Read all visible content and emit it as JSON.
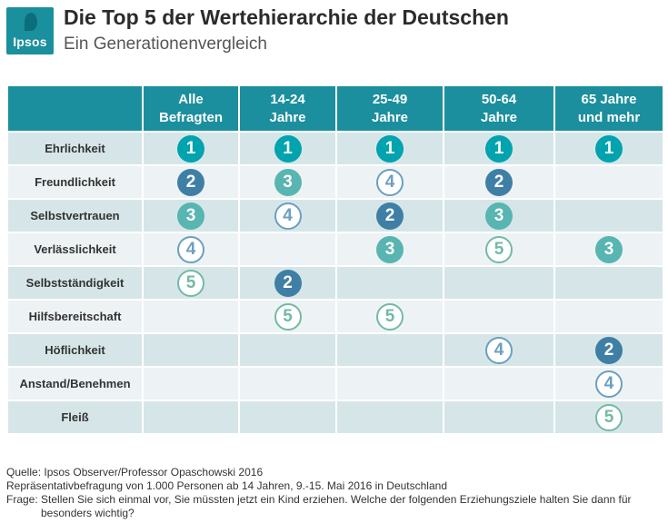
{
  "brand": {
    "logo_text": "Ipsos"
  },
  "title": "Die Top 5 der Wertehierarchie der Deutschen",
  "subtitle": "Ein Generationenvergleich",
  "chart_data": {
    "type": "table",
    "columns": [
      "Alle\nBefragten",
      "14-24\nJahre",
      "25-49\nJahre",
      "50-64\nJahre",
      "65 Jahre\nund mehr"
    ],
    "rows": [
      {
        "label": "Ehrlichkeit",
        "ranks": [
          1,
          1,
          1,
          1,
          1
        ]
      },
      {
        "label": "Freundlichkeit",
        "ranks": [
          2,
          3,
          4,
          2,
          null
        ]
      },
      {
        "label": "Selbstvertrauen",
        "ranks": [
          3,
          4,
          2,
          3,
          null
        ]
      },
      {
        "label": "Verlässlichkeit",
        "ranks": [
          4,
          null,
          3,
          5,
          3
        ]
      },
      {
        "label": "Selbstständigkeit",
        "ranks": [
          5,
          2,
          null,
          null,
          null
        ]
      },
      {
        "label": "Hilfsbereitschaft",
        "ranks": [
          null,
          5,
          5,
          null,
          null
        ]
      },
      {
        "label": "Höflichkeit",
        "ranks": [
          null,
          null,
          null,
          4,
          2
        ]
      },
      {
        "label": "Anstand/Benehmen",
        "ranks": [
          null,
          null,
          null,
          null,
          4
        ]
      },
      {
        "label": "Fleiß",
        "ranks": [
          null,
          null,
          null,
          null,
          5
        ]
      }
    ],
    "rank_colors": {
      "1": "#00a3ae",
      "2": "#3f7fa6",
      "3": "#58b5b1",
      "4": "#6c9fc0",
      "5": "#74b9a6"
    },
    "header_color": "#1b8f9d"
  },
  "footer": {
    "source": "Quelle: Ipsos Observer/Professor  Opaschowski 2016",
    "sample": "Repräsentativbefragung von 1.000 Personen ab 14 Jahren, 9.-15. Mai 2016  in Deutschland",
    "question_line1": "Frage: Stellen Sie sich einmal vor, Sie müssten jetzt ein Kind erziehen. Welche der folgenden Erziehungsziele halten Sie dann für",
    "question_line2": "besonders wichtig?"
  }
}
